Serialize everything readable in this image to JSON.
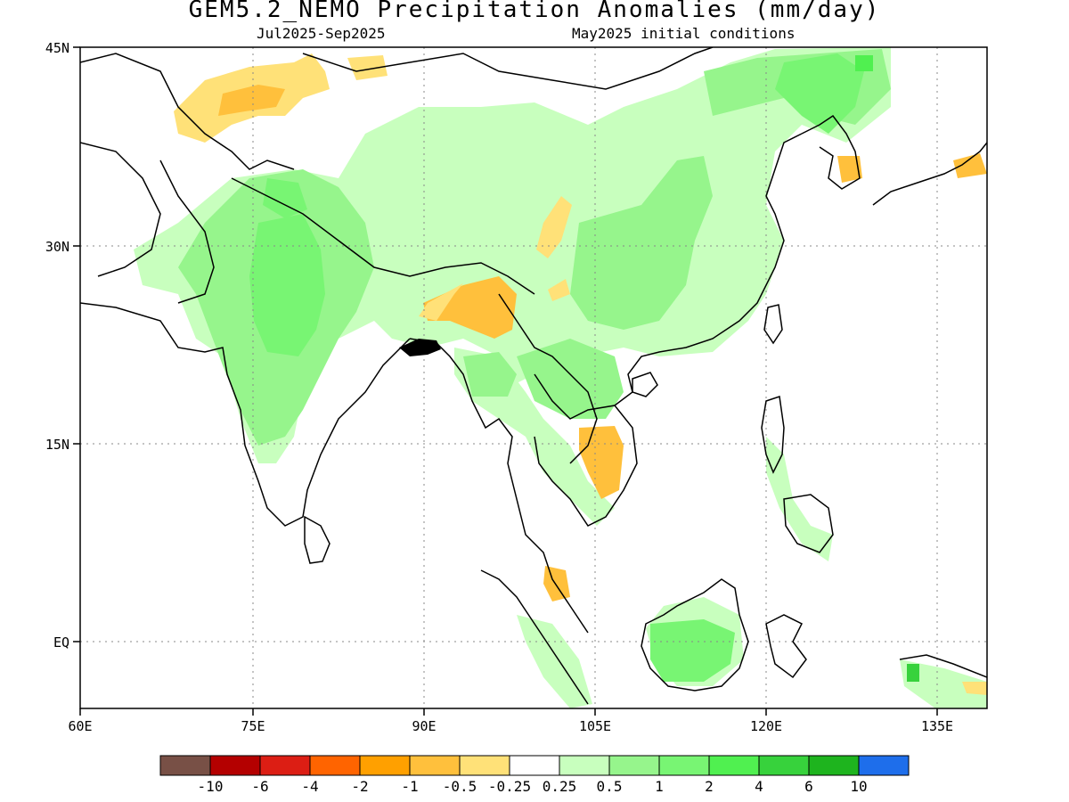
{
  "title": "GEM5.2_NEMO Precipitation Anomalies (mm/day)",
  "subtitle_left": "Jul2025-Sep2025",
  "subtitle_right": "May2025 initial conditions",
  "map": {
    "region": "South, Southeast and East Asia",
    "lon_range": [
      60,
      140
    ],
    "lat_range": [
      -5,
      45
    ],
    "grid_lines": true,
    "lon_ticks": [
      {
        "value": 60,
        "label": "60E"
      },
      {
        "value": 75,
        "label": "75E"
      },
      {
        "value": 90,
        "label": "90E"
      },
      {
        "value": 105,
        "label": "105E"
      },
      {
        "value": 120,
        "label": "120E"
      },
      {
        "value": 135,
        "label": "135E"
      }
    ],
    "lat_ticks": [
      {
        "value": 45,
        "label": "45N"
      },
      {
        "value": 30,
        "label": "30N"
      },
      {
        "value": 15,
        "label": "15N"
      },
      {
        "value": 0,
        "label": "EQ"
      }
    ],
    "anomaly_regions": [
      {
        "name": "northwest-india-pakistan",
        "category": "0.5 to 1"
      },
      {
        "name": "central-india",
        "category": "1 to 2"
      },
      {
        "name": "tibetan-plateau-east-china",
        "category": "0.25 to 0.5"
      },
      {
        "name": "south-china",
        "category": "0.5 to 1"
      },
      {
        "name": "northeast-china-korea",
        "category": "1 to 2"
      },
      {
        "name": "borneo",
        "category": "2 to 4"
      },
      {
        "name": "northeast-india-myanmar",
        "category": "-1 to -0.5"
      },
      {
        "name": "central-asia-xinjiang",
        "category": "-0.5 to -0.25"
      },
      {
        "name": "cambodia-south-vietnam",
        "category": "-1 to -0.5"
      }
    ]
  },
  "colorbar": {
    "colors": [
      "#785046",
      "#b40000",
      "#dc1e14",
      "#ff6400",
      "#ffa000",
      "#ffc03c",
      "#ffe178",
      "#ffffff",
      "#c8ffbe",
      "#96f58c",
      "#78f573",
      "#50f050",
      "#37d23c",
      "#1eb41e",
      "#1e6eeb"
    ],
    "labels": [
      "-10",
      "-6",
      "-4",
      "-2",
      "-1",
      "-0.5",
      "-0.25",
      "0.25",
      "0.5",
      "1",
      "2",
      "4",
      "6",
      "10"
    ]
  }
}
